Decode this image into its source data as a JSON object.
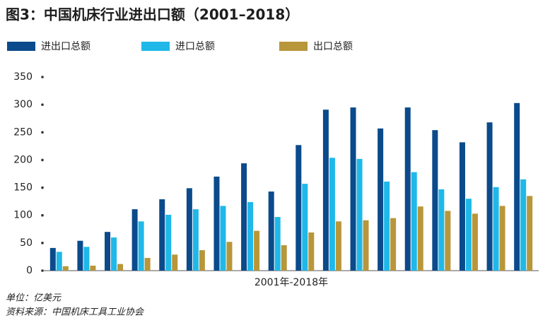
{
  "chart_data": {
    "type": "bar",
    "title": "图3：中国机床行业进出口额（2001–2018）",
    "x_label": "2001年-2018年",
    "notes": [
      "单位：亿美元",
      "资料来源：中国机床工具工业协会"
    ],
    "categories": [
      null,
      null,
      null,
      null,
      null,
      null,
      null,
      null,
      null,
      null,
      null,
      null,
      null,
      null,
      null,
      null,
      null,
      null
    ],
    "series": [
      {
        "name": "进出口总额",
        "color": "#0b4a8b",
        "values": [
          41,
          54,
          70,
          111,
          129,
          149,
          170,
          194,
          143,
          227,
          291,
          295,
          257,
          295,
          254,
          232,
          268,
          303
        ]
      },
      {
        "name": "进口总额",
        "color": "#1fb8e8",
        "values": [
          34,
          43,
          60,
          89,
          101,
          111,
          117,
          124,
          97,
          157,
          204,
          202,
          161,
          178,
          147,
          130,
          151,
          165
        ]
      },
      {
        "name": "出口总额",
        "color": "#b8963a",
        "values": [
          8,
          9,
          12,
          23,
          29,
          37,
          52,
          72,
          46,
          69,
          89,
          91,
          95,
          116,
          108,
          103,
          117,
          135
        ]
      }
    ],
    "ylim": [
      0,
      350
    ],
    "yticks": [
      0,
      50,
      100,
      150,
      200,
      250,
      300,
      350
    ],
    "grid": false
  }
}
